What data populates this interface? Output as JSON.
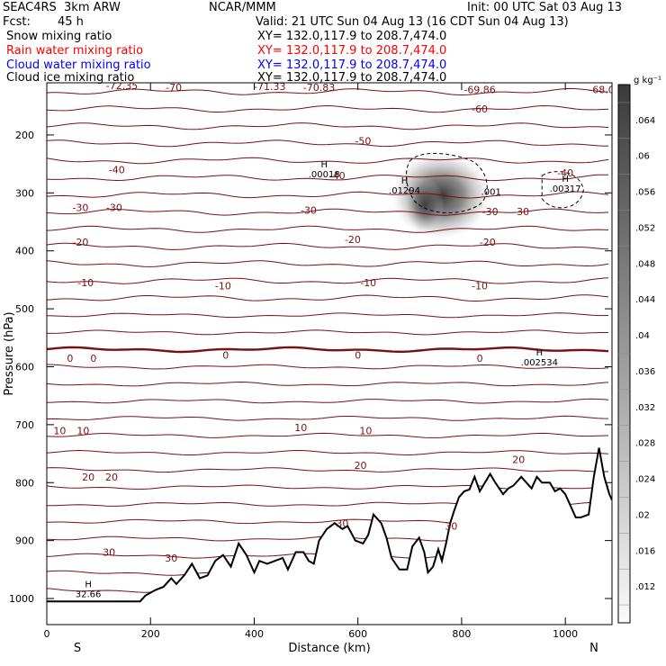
{
  "header": {
    "model": "SEAC4RS  3km ARW",
    "org": "NCAR/MMM",
    "init": "Init: 00 UTC Sat 03 Aug 13",
    "fcst_label": "Fcst:",
    "fcst_value": "45 h",
    "valid": "Valid: 21 UTC Sun 04 Aug 13 (16 CDT Sun 04 Aug 13)",
    "fields": [
      {
        "name": "Snow mixing ratio",
        "xy": "XY= 132.0,117.9 to 208.7,474.0",
        "color": "#000000"
      },
      {
        "name": "Rain water mixing ratio",
        "xy": "XY= 132.0,117.9 to 208.7,474.0",
        "color": "#ff0000"
      },
      {
        "name": "Cloud water mixing ratio",
        "xy": "XY= 132.0,117.9 to 208.7,474.0",
        "color": "#0000ff"
      },
      {
        "name": "Cloud ice mixing ratio",
        "xy": "XY= 132.0,117.9 to 208.7,474.0",
        "color": "#000000"
      }
    ]
  },
  "chart_data": {
    "type": "cross-section",
    "xlabel": "Distance (km)",
    "ylabel": "Pressure (hPa)",
    "x_ticks": [
      0,
      200,
      400,
      600,
      800,
      1000
    ],
    "y_ticks": [
      200,
      300,
      400,
      500,
      600,
      700,
      800,
      900,
      1000
    ],
    "xlim": [
      0,
      1090
    ],
    "ylim_top": 110,
    "ylim_bottom": 1045,
    "end_labels": {
      "left": "S",
      "right": "N"
    },
    "colorbar": {
      "unit": "g kg⁻¹",
      "labels": [
        ".064",
        ".06",
        ".056",
        ".052",
        ".048",
        ".044",
        ".04",
        ".036",
        ".032",
        ".028",
        ".024",
        ".02",
        ".016",
        ".012"
      ]
    },
    "isotherm_labels": [
      {
        "text": "-72.35",
        "x": 145,
        "p": 115
      },
      {
        "text": "-70",
        "x": 245,
        "p": 118
      },
      {
        "text": "-71.33",
        "x": 430,
        "p": 116
      },
      {
        "text": "-70.83",
        "x": 525,
        "p": 118
      },
      {
        "text": "-69.86",
        "x": 835,
        "p": 122
      },
      {
        "text": "-68.0",
        "x": 1070,
        "p": 122
      },
      {
        "text": "-60",
        "x": 835,
        "p": 155
      },
      {
        "text": "-50",
        "x": 610,
        "p": 210
      },
      {
        "text": "-40",
        "x": 135,
        "p": 260
      },
      {
        "text": "-40",
        "x": 560,
        "p": 270
      },
      {
        "text": "-40",
        "x": 1000,
        "p": 265
      },
      {
        "text": "-30",
        "x": 65,
        "p": 325
      },
      {
        "text": "-30",
        "x": 130,
        "p": 325
      },
      {
        "text": "-30",
        "x": 505,
        "p": 330
      },
      {
        "text": "-30",
        "x": 855,
        "p": 332
      },
      {
        "text": "-30",
        "x": 915,
        "p": 332
      },
      {
        "text": "-20",
        "x": 65,
        "p": 385
      },
      {
        "text": "-20",
        "x": 590,
        "p": 380
      },
      {
        "text": "-20",
        "x": 850,
        "p": 385
      },
      {
        "text": "-10",
        "x": 75,
        "p": 455
      },
      {
        "text": "-10",
        "x": 340,
        "p": 460
      },
      {
        "text": "-10",
        "x": 620,
        "p": 455
      },
      {
        "text": "-10",
        "x": 835,
        "p": 460
      },
      {
        "text": "0",
        "x": 45,
        "p": 585
      },
      {
        "text": "0",
        "x": 90,
        "p": 585
      },
      {
        "text": "0",
        "x": 345,
        "p": 580
      },
      {
        "text": "0",
        "x": 600,
        "p": 580
      },
      {
        "text": "0",
        "x": 835,
        "p": 585
      },
      {
        "text": "10",
        "x": 25,
        "p": 710
      },
      {
        "text": "10",
        "x": 70,
        "p": 710
      },
      {
        "text": "10",
        "x": 490,
        "p": 705
      },
      {
        "text": "10",
        "x": 615,
        "p": 710
      },
      {
        "text": "20",
        "x": 80,
        "p": 790
      },
      {
        "text": "20",
        "x": 125,
        "p": 790
      },
      {
        "text": "20",
        "x": 605,
        "p": 770
      },
      {
        "text": "20",
        "x": 910,
        "p": 760
      },
      {
        "text": "30",
        "x": 120,
        "p": 920
      },
      {
        "text": "30",
        "x": 240,
        "p": 930
      },
      {
        "text": "30",
        "x": 570,
        "p": 870
      },
      {
        "text": "30",
        "x": 780,
        "p": 875
      }
    ],
    "extrema": [
      {
        "kind": "H",
        "value": ".00018",
        "x": 535,
        "p": 265,
        "color": "#000000"
      },
      {
        "kind": "H",
        "value": ".01294",
        "x": 690,
        "p": 293,
        "color": "#000000"
      },
      {
        "kind": "H",
        "value": ".00317",
        "x": 1000,
        "p": 290,
        "color": "#000000"
      },
      {
        "kind": "H",
        "value": ".002534",
        "x": 950,
        "p": 590,
        "color": "#0000ff"
      },
      {
        "kind": "H",
        "value": "32.66",
        "x": 80,
        "p": 990,
        "color": "#7a1010"
      }
    ],
    "extra_labels": [
      {
        "text": ".001",
        "x": 857,
        "p": 303,
        "color": "#000000"
      }
    ],
    "terrain": [
      [
        0,
        1005
      ],
      [
        180,
        1005
      ],
      [
        190,
        995
      ],
      [
        210,
        985
      ],
      [
        225,
        980
      ],
      [
        240,
        965
      ],
      [
        250,
        975
      ],
      [
        265,
        960
      ],
      [
        280,
        940
      ],
      [
        295,
        965
      ],
      [
        310,
        960
      ],
      [
        325,
        935
      ],
      [
        340,
        925
      ],
      [
        355,
        945
      ],
      [
        370,
        905
      ],
      [
        385,
        925
      ],
      [
        400,
        955
      ],
      [
        410,
        935
      ],
      [
        425,
        940
      ],
      [
        440,
        935
      ],
      [
        455,
        930
      ],
      [
        465,
        950
      ],
      [
        480,
        920
      ],
      [
        495,
        920
      ],
      [
        505,
        935
      ],
      [
        515,
        940
      ],
      [
        525,
        900
      ],
      [
        540,
        880
      ],
      [
        555,
        870
      ],
      [
        570,
        880
      ],
      [
        580,
        875
      ],
      [
        595,
        900
      ],
      [
        610,
        905
      ],
      [
        620,
        890
      ],
      [
        630,
        855
      ],
      [
        645,
        870
      ],
      [
        655,
        895
      ],
      [
        665,
        930
      ],
      [
        680,
        950
      ],
      [
        695,
        950
      ],
      [
        705,
        910
      ],
      [
        718,
        895
      ],
      [
        728,
        920
      ],
      [
        735,
        955
      ],
      [
        745,
        945
      ],
      [
        755,
        915
      ],
      [
        762,
        935
      ],
      [
        770,
        905
      ],
      [
        778,
        870
      ],
      [
        785,
        850
      ],
      [
        795,
        825
      ],
      [
        805,
        815
      ],
      [
        815,
        812
      ],
      [
        825,
        790
      ],
      [
        835,
        815
      ],
      [
        845,
        800
      ],
      [
        855,
        785
      ],
      [
        865,
        800
      ],
      [
        880,
        820
      ],
      [
        890,
        810
      ],
      [
        900,
        805
      ],
      [
        915,
        790
      ],
      [
        925,
        800
      ],
      [
        935,
        810
      ],
      [
        945,
        790
      ],
      [
        955,
        800
      ],
      [
        970,
        800
      ],
      [
        980,
        815
      ],
      [
        990,
        810
      ],
      [
        1000,
        820
      ],
      [
        1010,
        840
      ],
      [
        1020,
        860
      ],
      [
        1030,
        860
      ],
      [
        1045,
        855
      ],
      [
        1055,
        790
      ],
      [
        1065,
        740
      ],
      [
        1075,
        790
      ],
      [
        1085,
        820
      ],
      [
        1090,
        830
      ]
    ],
    "shading_max": {
      "x": 760,
      "p": 305
    }
  }
}
